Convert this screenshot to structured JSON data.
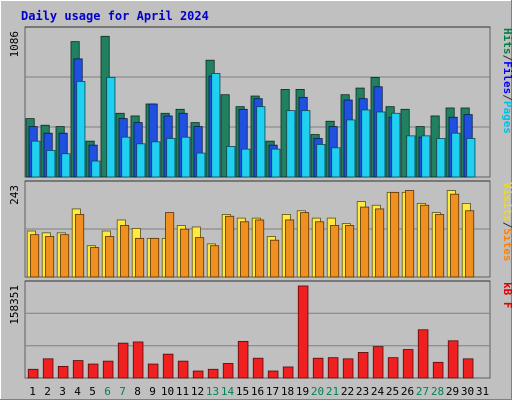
{
  "chart_data": [
    {
      "type": "bar",
      "title": "Daily usage for April 2024",
      "categories": [
        "1",
        "2",
        "3",
        "4",
        "5",
        "6",
        "7",
        "8",
        "9",
        "10",
        "11",
        "12",
        "13",
        "14",
        "15",
        "16",
        "17",
        "18",
        "19",
        "20",
        "21",
        "22",
        "23",
        "24",
        "25",
        "26",
        "27",
        "28",
        "29",
        "30",
        "31"
      ],
      "weekend_days": [
        "6",
        "7",
        "13",
        "14",
        "20",
        "21",
        "27",
        "28"
      ],
      "y_tick_label": "1086",
      "ylim": [
        0,
        1100
      ],
      "legend": [
        "Pages",
        "/",
        "Files",
        "/",
        "Hits"
      ],
      "legend_colors": [
        "#00c0e8",
        "#333333",
        "#0000ff",
        "#333333",
        "#008040"
      ],
      "series": [
        {
          "name": "Hits",
          "color": "#208060",
          "values": [
            440,
            390,
            380,
            1020,
            270,
            1060,
            480,
            460,
            550,
            480,
            510,
            410,
            880,
            620,
            530,
            610,
            270,
            660,
            660,
            320,
            420,
            620,
            670,
            750,
            530,
            510,
            380,
            460,
            520,
            520,
            0
          ]
        },
        {
          "name": "Files",
          "color": "#2050e0",
          "values": [
            380,
            330,
            330,
            890,
            240,
            0,
            440,
            410,
            550,
            460,
            480,
            380,
            760,
            0,
            510,
            590,
            240,
            0,
            600,
            290,
            380,
            580,
            590,
            680,
            450,
            0,
            300,
            0,
            450,
            470,
            0
          ]
        },
        {
          "name": "Pages",
          "color": "#20d0f0",
          "values": [
            270,
            200,
            175,
            720,
            120,
            750,
            300,
            250,
            265,
            290,
            300,
            180,
            780,
            230,
            210,
            530,
            210,
            500,
            500,
            245,
            220,
            430,
            505,
            490,
            480,
            310,
            310,
            290,
            330,
            290,
            0
          ]
        }
      ]
    },
    {
      "type": "bar",
      "categories": [
        "1",
        "2",
        "3",
        "4",
        "5",
        "6",
        "7",
        "8",
        "9",
        "10",
        "11",
        "12",
        "13",
        "14",
        "15",
        "16",
        "17",
        "18",
        "19",
        "20",
        "21",
        "22",
        "23",
        "24",
        "25",
        "26",
        "27",
        "28",
        "29",
        "30",
        "31"
      ],
      "y_tick_label": "243",
      "ylim": [
        0,
        250
      ],
      "legend": [
        "Sites",
        "/",
        "Visits"
      ],
      "legend_colors": [
        "#ff8000",
        "#333333",
        "#e8d830"
      ],
      "series": [
        {
          "name": "Visits",
          "color": "#ffe840",
          "values": [
            125,
            120,
            120,
            185,
            85,
            125,
            155,
            132,
            105,
            105,
            140,
            136,
            90,
            170,
            160,
            160,
            110,
            170,
            180,
            160,
            160,
            145,
            205,
            195,
            230,
            230,
            200,
            175,
            235,
            200,
            0
          ]
        },
        {
          "name": "Sites",
          "color": "#f09020",
          "values": [
            115,
            110,
            115,
            170,
            80,
            110,
            140,
            105,
            105,
            175,
            130,
            107,
            85,
            165,
            150,
            155,
            100,
            155,
            175,
            150,
            140,
            140,
            190,
            185,
            230,
            235,
            195,
            170,
            225,
            180,
            0
          ]
        }
      ]
    },
    {
      "type": "bar",
      "categories": [
        "1",
        "2",
        "3",
        "4",
        "5",
        "6",
        "7",
        "8",
        "9",
        "10",
        "11",
        "12",
        "13",
        "14",
        "15",
        "16",
        "17",
        "18",
        "19",
        "20",
        "21",
        "22",
        "23",
        "24",
        "25",
        "26",
        "27",
        "28",
        "29",
        "30",
        "31"
      ],
      "y_tick_label": "158351",
      "ylim": [
        0,
        160000
      ],
      "legend": [
        "kB F"
      ],
      "legend_colors": [
        "#e00000"
      ],
      "series": [
        {
          "name": "kB F",
          "color": "#f02020",
          "values": [
            15000,
            33000,
            20000,
            30000,
            24000,
            29000,
            60000,
            62000,
            24000,
            41000,
            29000,
            12000,
            15000,
            25000,
            63000,
            34000,
            12000,
            19000,
            158351,
            34000,
            35000,
            33000,
            44000,
            54000,
            35000,
            49000,
            83000,
            27000,
            64000,
            33000,
            0
          ]
        }
      ]
    }
  ]
}
